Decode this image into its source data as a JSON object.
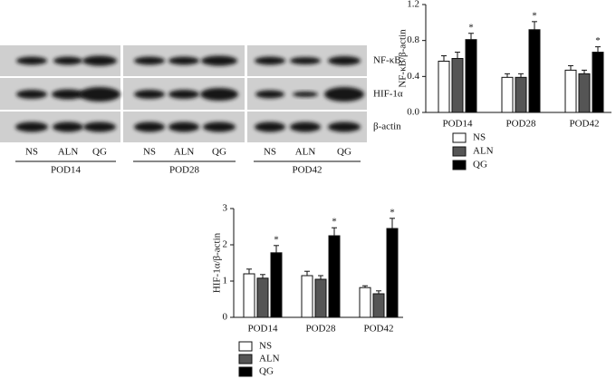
{
  "blot": {
    "rows": [
      "NF-κB",
      "HIF-1α",
      "β-actin"
    ],
    "lanes": [
      "NS",
      "ALN",
      "QG"
    ],
    "groups": [
      "POD14",
      "POD28",
      "POD42"
    ]
  },
  "chart_data": [
    {
      "type": "bar",
      "ylabel": "NF-κB/β-actin",
      "categories": [
        "POD14",
        "POD28",
        "POD42"
      ],
      "series": [
        {
          "name": "NS",
          "color": "#ffffff",
          "values": [
            0.57,
            0.39,
            0.47
          ],
          "errors": [
            0.06,
            0.04,
            0.05
          ]
        },
        {
          "name": "ALN",
          "color": "#555555",
          "values": [
            0.6,
            0.39,
            0.43
          ],
          "errors": [
            0.07,
            0.04,
            0.04
          ]
        },
        {
          "name": "QG",
          "color": "#000000",
          "values": [
            0.81,
            0.92,
            0.67
          ],
          "errors": [
            0.07,
            0.09,
            0.06
          ],
          "markers": [
            "*",
            "*",
            "*"
          ]
        }
      ],
      "ylim": [
        0,
        1.2
      ],
      "yticks": [
        {
          "value": 0,
          "label": "0.0"
        },
        0.4,
        0.8,
        1.2
      ]
    },
    {
      "type": "bar",
      "ylabel": "HIF-1α/β-actin",
      "categories": [
        "POD14",
        "POD28",
        "POD42"
      ],
      "series": [
        {
          "name": "NS",
          "color": "#ffffff",
          "values": [
            1.2,
            1.15,
            0.82
          ],
          "errors": [
            0.13,
            0.12,
            0.05
          ]
        },
        {
          "name": "ALN",
          "color": "#555555",
          "values": [
            1.08,
            1.05,
            0.65
          ],
          "errors": [
            0.1,
            0.1,
            0.08
          ]
        },
        {
          "name": "QG",
          "color": "#000000",
          "values": [
            1.78,
            2.25,
            2.45
          ],
          "errors": [
            0.2,
            0.22,
            0.28
          ],
          "markers": [
            "*",
            "*",
            "*"
          ]
        }
      ],
      "ylim": [
        0,
        3
      ],
      "yticks": [
        0,
        1,
        2,
        3
      ]
    }
  ]
}
